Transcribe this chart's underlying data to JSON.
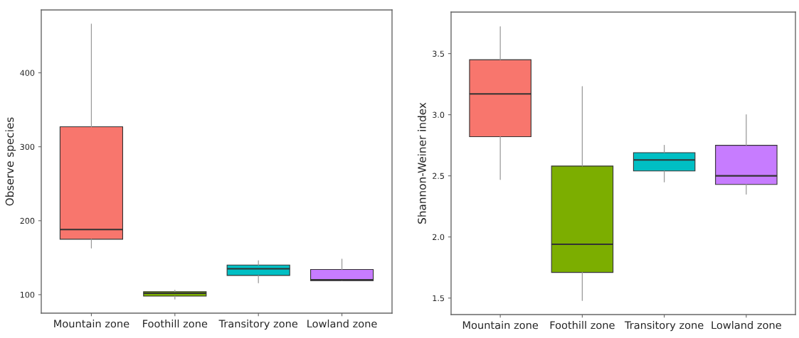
{
  "chart_data": [
    {
      "type": "box",
      "ylabel": "Observe species",
      "categories": [
        "Mountain zone",
        "Foothill zone",
        "Transitory zone",
        "Lowland zone"
      ],
      "colors": [
        "#f8766d",
        "#7cae00",
        "#00bfc4",
        "#c77cff"
      ],
      "ylim": [
        75,
        485
      ],
      "yticks": [
        100,
        200,
        300,
        400
      ],
      "grid": false,
      "boxes": [
        {
          "low": 163,
          "q1": 175,
          "median": 188,
          "q3": 327,
          "high": 466
        },
        {
          "low": 94,
          "q1": 98,
          "median": 102,
          "q3": 104,
          "high": 106
        },
        {
          "low": 116,
          "q1": 126,
          "median": 135,
          "q3": 140,
          "high": 146
        },
        {
          "low": 119,
          "q1": 119,
          "median": 120,
          "q3": 134,
          "high": 148
        }
      ]
    },
    {
      "type": "box",
      "ylabel": "Shannon-Weiner index",
      "categories": [
        "Mountain zone",
        "Foothill zone",
        "Transitory zone",
        "Lowland zone"
      ],
      "colors": [
        "#f8766d",
        "#7cae00",
        "#00bfc4",
        "#c77cff"
      ],
      "ylim": [
        1.365,
        3.84
      ],
      "yticks": [
        {
          "value": 1.5,
          "label": "1.5"
        },
        {
          "value": 2.0,
          "label": "2.0"
        },
        {
          "value": 2.5,
          "label": "2.5"
        },
        {
          "value": 3.0,
          "label": "3.0"
        },
        {
          "value": 3.5,
          "label": "3.5"
        }
      ],
      "grid": false,
      "boxes": [
        {
          "low": 2.47,
          "q1": 2.82,
          "median": 3.17,
          "q3": 3.45,
          "high": 3.72
        },
        {
          "low": 1.48,
          "q1": 1.71,
          "median": 1.94,
          "q3": 2.58,
          "high": 3.23
        },
        {
          "low": 2.45,
          "q1": 2.54,
          "median": 2.63,
          "q3": 2.69,
          "high": 2.75
        },
        {
          "low": 2.35,
          "q1": 2.43,
          "median": 2.5,
          "q3": 2.75,
          "high": 3.0
        }
      ]
    }
  ]
}
